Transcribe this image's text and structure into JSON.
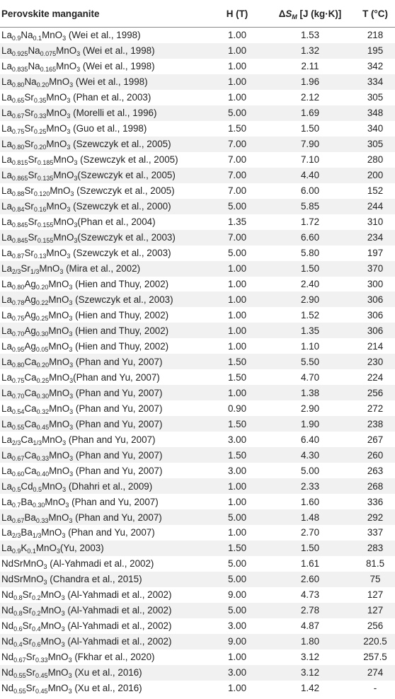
{
  "header": {
    "material": "Perovskite manganite",
    "h": "H (T)",
    "ds": {
      "symbol": "Δ",
      "var": "S",
      "sub": "M",
      "unit": " [J (kg·K)]"
    },
    "t": "T (°C)"
  },
  "rows": [
    {
      "formula": [
        "La",
        "0.9",
        "Na",
        "0.1",
        "MnO",
        "3"
      ],
      "ref": " (Wei et al., 1998)",
      "h": "1.00",
      "ds": "1.53",
      "t": "218"
    },
    {
      "formula": [
        "La",
        "0.925",
        "Na",
        "0.075",
        "MnO",
        "3"
      ],
      "ref": " (Wei et al., 1998)",
      "h": "1.00",
      "ds": "1.32",
      "t": "195"
    },
    {
      "formula": [
        "La",
        "0.835",
        "Na",
        "0.165",
        "MnO",
        "3"
      ],
      "ref": " (Wei et al., 1998)",
      "h": "1.00",
      "ds": "2.11",
      "t": "342"
    },
    {
      "formula": [
        "La",
        "0.80",
        "Na",
        "0.20",
        "MnO",
        "3"
      ],
      "ref": " (Wei et al., 1998)",
      "h": "1.00",
      "ds": "1.96",
      "t": "334"
    },
    {
      "formula": [
        "La",
        "0.65",
        "Sr",
        "0.35",
        "MnO",
        "3"
      ],
      "ref": " (Phan et al., 2003)",
      "h": "1.00",
      "ds": "2.12",
      "t": "305"
    },
    {
      "formula": [
        "La",
        "0.67",
        "Sr",
        "0.33",
        "MnO",
        "3"
      ],
      "ref": " (Morelli et al., 1996)",
      "h": "5.00",
      "ds": "1.69",
      "t": "348"
    },
    {
      "formula": [
        "La",
        "0.75",
        "Sr",
        "0.25",
        "MnO",
        "3"
      ],
      "ref": " (Guo et al., 1998)",
      "h": "1.50",
      "ds": "1.50",
      "t": "340"
    },
    {
      "formula": [
        "La",
        "0.80",
        "Sr",
        "0.20",
        "MnO",
        "3"
      ],
      "ref": " (Szewczyk et al., 2005)",
      "h": "7.00",
      "ds": "7.90",
      "t": "305"
    },
    {
      "formula": [
        "La",
        "0.815",
        "Sr",
        "0.185",
        "MnO",
        "3"
      ],
      "ref": " (Szewczyk et al., 2005)",
      "h": "7.00",
      "ds": "7.10",
      "t": "280"
    },
    {
      "formula": [
        "La",
        "0.865",
        "Sr",
        "0.135",
        "MnO",
        "3"
      ],
      "ref": "(Szewczyk et al., 2005)",
      "h": "7.00",
      "ds": "4.40",
      "t": "200"
    },
    {
      "formula": [
        "La",
        "0.88",
        "Sr",
        "0.120",
        "MnO",
        "3"
      ],
      "ref": " (Szewczyk et al., 2005)",
      "h": "7.00",
      "ds": "6.00",
      "t": "152"
    },
    {
      "formula": [
        "La",
        "0.84",
        "Sr",
        "0.16",
        "MnO",
        "3"
      ],
      "ref": " (Szewczyk et al., 2000)",
      "h": "5.00",
      "ds": "5.85",
      "t": "244"
    },
    {
      "formula": [
        "La",
        "0.845",
        "Sr",
        "0.155",
        "MnO",
        "3"
      ],
      "ref": "(Phan et al., 2004)",
      "h": "1.35",
      "ds": "1.72",
      "t": "310"
    },
    {
      "formula": [
        "La",
        "0.845",
        "Sr",
        "0.155",
        "MnO",
        "3"
      ],
      "ref": "(Szewczyk et al., 2003)",
      "h": "7.00",
      "ds": "6.60",
      "t": "234"
    },
    {
      "formula": [
        "La",
        "0.87",
        "Sr",
        "0.13",
        "MnO",
        "3"
      ],
      "ref": " (Szewczyk et al., 2003)",
      "h": "5.00",
      "ds": "5.80",
      "t": "197"
    },
    {
      "formula": [
        "La",
        "2/3",
        "Sr",
        "1/3",
        "MnO",
        "3"
      ],
      "ref": " (Mira et al., 2002)",
      "h": "1.00",
      "ds": "1.50",
      "t": "370"
    },
    {
      "formula": [
        "La",
        "0.80",
        "Ag",
        "0.20",
        "MnO",
        "3"
      ],
      "ref": " (Hien and Thuy, 2002)",
      "h": "1.00",
      "ds": "2.40",
      "t": "300"
    },
    {
      "formula": [
        "La",
        "0.78",
        "Ag",
        "0.22",
        "MnO",
        "3"
      ],
      "ref": " (Szewczyk et al., 2003)",
      "h": "1.00",
      "ds": "2.90",
      "t": "306"
    },
    {
      "formula": [
        "La",
        "0.75",
        "Ag",
        "0.25",
        "MnO",
        "3"
      ],
      "ref": " (Hien and Thuy, 2002)",
      "h": "1.00",
      "ds": "1.52",
      "t": "306"
    },
    {
      "formula": [
        "La",
        "0.70",
        "Ag",
        "0.30",
        "MnO",
        "3"
      ],
      "ref": " (Hien and Thuy, 2002)",
      "h": "1.00",
      "ds": "1.35",
      "t": "306"
    },
    {
      "formula": [
        "La",
        "0.95",
        "Ag",
        "0.05",
        "MnO",
        "3"
      ],
      "ref": " (Hien and Thuy, 2002)",
      "h": "1.00",
      "ds": "1.10",
      "t": "214"
    },
    {
      "formula": [
        "La",
        "0.80",
        "Ca",
        "0.20",
        "MnO",
        "3"
      ],
      "ref": " (Phan and Yu, 2007)",
      "h": "1.50",
      "ds": "5.50",
      "t": "230"
    },
    {
      "formula": [
        "La",
        "0.75",
        "Ca",
        "0.25",
        "MnO",
        "3"
      ],
      "ref": "(Phan and Yu, 2007)",
      "h": "1.50",
      "ds": "4.70",
      "t": "224"
    },
    {
      "formula": [
        "La",
        "0.70",
        "Ca",
        "0.30",
        "MnO",
        "3"
      ],
      "ref": " (Phan and Yu, 2007)",
      "h": "1.00",
      "ds": "1.38",
      "t": "256"
    },
    {
      "formula": [
        "La",
        "0.54",
        "Ca",
        "0.32",
        "MnO",
        "3"
      ],
      "ref": " (Phan and Yu, 2007)",
      "h": "0.90",
      "ds": "2.90",
      "t": "272"
    },
    {
      "formula": [
        "La",
        "0.55",
        "Ca",
        "0.45",
        "MnO",
        "3"
      ],
      "ref": " (Phan and Yu, 2007)",
      "h": "1.50",
      "ds": "1.90",
      "t": "238"
    },
    {
      "formula": [
        "La",
        "2/3",
        "Ca",
        "1/3",
        "MnO",
        "3"
      ],
      "ref": " (Phan and Yu, 2007)",
      "h": "3.00",
      "ds": "6.40",
      "t": "267"
    },
    {
      "formula": [
        "La",
        "0.67",
        "Ca",
        "0.33",
        "MnO",
        "3"
      ],
      "ref": " (Phan and Yu, 2007)",
      "h": "1.50",
      "ds": "4.30",
      "t": "260"
    },
    {
      "formula": [
        "La",
        "0.60",
        "Ca",
        "0.40",
        "MnO",
        "3"
      ],
      "ref": " (Phan and Yu, 2007)",
      "h": "3.00",
      "ds": "5.00",
      "t": "263"
    },
    {
      "formula": [
        "La",
        "0.5",
        "Cd",
        "0.5",
        "MnO",
        "3"
      ],
      "ref": " (Dhahri et al., 2009)",
      "h": "1.00",
      "ds": "2.33",
      "t": "268"
    },
    {
      "formula": [
        "La",
        "0.7",
        "Ba",
        "0.30",
        "MnO",
        "3"
      ],
      "ref": " (Phan and Yu, 2007)",
      "h": "1.00",
      "ds": "1.60",
      "t": "336"
    },
    {
      "formula": [
        "La",
        "0.67",
        "Ba",
        "0.33",
        "MnO",
        "3"
      ],
      "ref": " (Phan and Yu, 2007)",
      "h": "5.00",
      "ds": "1.48",
      "t": "292"
    },
    {
      "formula": [
        "La",
        "2/3",
        "Ba",
        "1/3",
        "MnO",
        "3"
      ],
      "ref": " (Phan and Yu, 2007)",
      "h": "1.00",
      "ds": "2.70",
      "t": "337"
    },
    {
      "formula": [
        "La",
        "0.9",
        "K",
        "0.1",
        "MnO",
        "3"
      ],
      "ref": "(Yu, 2003)",
      "h": "1.50",
      "ds": "1.50",
      "t": "283"
    },
    {
      "formula": [
        "NdSrMnO",
        "3"
      ],
      "ref": " (Al-Yahmadi et al., 2002)",
      "h": "5.00",
      "ds": "1.61",
      "t": "81.5"
    },
    {
      "formula": [
        "NdSrMnO",
        "3"
      ],
      "ref": " (Chandra et al., 2015)",
      "h": "5.00",
      "ds": "2.60",
      "t": "75"
    },
    {
      "formula": [
        "Nd",
        "0.8",
        "Sr",
        "0.2",
        "MnO",
        "3"
      ],
      "ref": " (Al-Yahmadi et al., 2002)",
      "h": "9.00",
      "ds": "4.73",
      "t": "127"
    },
    {
      "formula": [
        "Nd",
        "0.8",
        "Sr",
        "0.2",
        "MnO",
        "3"
      ],
      "ref": " (Al-Yahmadi et al., 2002)",
      "h": "5.00",
      "ds": "2.78",
      "t": "127"
    },
    {
      "formula": [
        "Nd",
        "0.6",
        "Sr",
        "0.4",
        "MnO",
        "3"
      ],
      "ref": " (Al-Yahmadi et al., 2002)",
      "h": "3.00",
      "ds": "4.87",
      "t": "256"
    },
    {
      "formula": [
        "Nd",
        "0.4",
        "Sr",
        "0.6",
        "MnO",
        "3"
      ],
      "ref": " (Al-Yahmadi et al., 2002)",
      "h": "9.00",
      "ds": "1.80",
      "t": "220.5"
    },
    {
      "formula": [
        "Nd",
        "0.67",
        "Sr",
        "0.33",
        "MnO",
        "3"
      ],
      "ref": " (Fkhar et al., 2020)",
      "h": "1.00",
      "ds": "3.12",
      "t": "257.5"
    },
    {
      "formula": [
        "Nd",
        "0.55",
        "Sr",
        "0.45",
        "MnO",
        "3"
      ],
      "ref": " (Xu et al., 2016)",
      "h": "3.00",
      "ds": "3.12",
      "t": "274"
    },
    {
      "formula": [
        "Nd",
        "0.55",
        "Sr",
        "0.45",
        "MnO",
        "3"
      ],
      "ref": " (Xu et al., 2016)",
      "h": "1.00",
      "ds": "1.42",
      "t": "-"
    }
  ]
}
